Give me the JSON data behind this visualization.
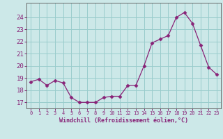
{
  "x": [
    0,
    1,
    2,
    3,
    4,
    5,
    6,
    7,
    8,
    9,
    10,
    11,
    12,
    13,
    14,
    15,
    16,
    17,
    18,
    19,
    20,
    21,
    22,
    23
  ],
  "y": [
    18.7,
    18.9,
    18.4,
    18.8,
    18.6,
    17.4,
    17.0,
    17.0,
    17.0,
    17.4,
    17.5,
    17.5,
    18.4,
    18.4,
    20.0,
    21.9,
    22.2,
    22.5,
    24.0,
    24.4,
    23.5,
    21.7,
    19.9,
    19.3
  ],
  "line_color": "#882277",
  "marker": "D",
  "marker_size": 2.5,
  "bg_color": "#cce8e8",
  "grid_color": "#99cccc",
  "axis_color": "#555555",
  "tick_color": "#882277",
  "xlabel": "Windchill (Refroidissement éolien,°C)",
  "xlabel_color": "#882277",
  "ylim": [
    16.5,
    25.2
  ],
  "yticks": [
    17,
    18,
    19,
    20,
    21,
    22,
    23,
    24
  ],
  "xlim": [
    -0.5,
    23.5
  ],
  "font_color": "#882277"
}
